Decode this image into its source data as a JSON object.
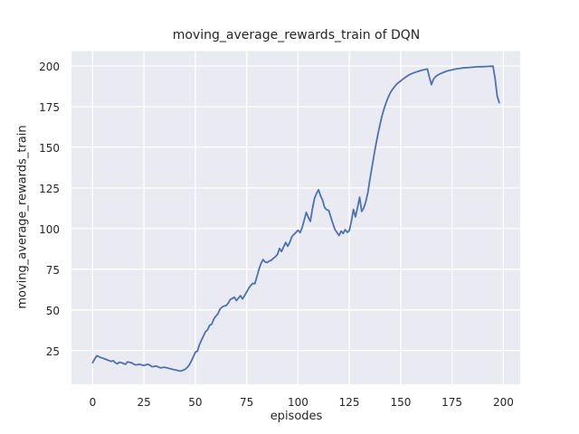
{
  "chart": {
    "title": "moving_average_rewards_train of DQN",
    "xlabel": "episodes",
    "ylabel": "moving_average_rewards_train"
  },
  "chart_data": {
    "type": "line",
    "title": "moving_average_rewards_train of DQN",
    "xlabel": "episodes",
    "ylabel": "moving_average_rewards_train",
    "legend": "none",
    "grid": "on (white gridlines, seaborn darkgrid style)",
    "axes_background_color": "#eaeaf2",
    "line_color": "#4c72b0",
    "text_color": "#262626",
    "xticks": [
      0,
      25,
      50,
      75,
      100,
      125,
      150,
      175,
      200
    ],
    "yticks": [
      25,
      50,
      75,
      100,
      125,
      150,
      175,
      200
    ],
    "xlim": [
      -10.3,
      208.2
    ],
    "ylim": [
      4.2,
      209.2
    ],
    "x": [
      0,
      1,
      2,
      3,
      4,
      5,
      6,
      7,
      8,
      9,
      10,
      11,
      12,
      13,
      14,
      15,
      16,
      17,
      18,
      19,
      20,
      21,
      22,
      23,
      24,
      25,
      26,
      27,
      28,
      29,
      30,
      31,
      32,
      33,
      34,
      35,
      36,
      37,
      38,
      39,
      40,
      41,
      42,
      43,
      44,
      45,
      46,
      47,
      48,
      49,
      50,
      51,
      52,
      53,
      54,
      55,
      56,
      57,
      58,
      59,
      60,
      61,
      62,
      63,
      64,
      65,
      66,
      67,
      68,
      69,
      70,
      71,
      72,
      73,
      74,
      75,
      76,
      77,
      78,
      79,
      80,
      81,
      82,
      83,
      84,
      85,
      86,
      87,
      88,
      89,
      90,
      91,
      92,
      93,
      94,
      95,
      96,
      97,
      98,
      99,
      100,
      101,
      102,
      103,
      104,
      105,
      106,
      107,
      108,
      109,
      110,
      111,
      112,
      113,
      114,
      115,
      116,
      117,
      118,
      119,
      120,
      121,
      122,
      123,
      124,
      125,
      126,
      127,
      128,
      129,
      130,
      131,
      132,
      133,
      134,
      135,
      136,
      137,
      138,
      139,
      140,
      141,
      142,
      143,
      144,
      145,
      146,
      147,
      148,
      149,
      150,
      151,
      152,
      153,
      154,
      155,
      156,
      157,
      158,
      159,
      160,
      161,
      162,
      163,
      164,
      165,
      166,
      167,
      168,
      169,
      170,
      171,
      172,
      173,
      174,
      175,
      176,
      177,
      178,
      179,
      180,
      181,
      182,
      183,
      184,
      185,
      186,
      187,
      188,
      189,
      190,
      191,
      192,
      193,
      194,
      195,
      196,
      197,
      198
    ],
    "values": [
      17.5,
      19.8,
      21.7,
      21.2,
      20.6,
      20.2,
      19.8,
      19.3,
      18.8,
      18.3,
      18.7,
      17.5,
      16.8,
      17.8,
      17.5,
      17.0,
      16.5,
      18.0,
      17.7,
      17.4,
      16.6,
      16.1,
      16.3,
      16.5,
      16.0,
      15.7,
      16.2,
      16.5,
      15.8,
      15.0,
      15.2,
      15.4,
      14.9,
      14.3,
      14.5,
      14.7,
      14.4,
      14.0,
      13.7,
      13.4,
      13.1,
      12.8,
      12.5,
      12.4,
      12.8,
      13.3,
      14.5,
      16.0,
      18.3,
      21.0,
      23.9,
      24.6,
      28.5,
      31.3,
      34.0,
      36.5,
      37.8,
      40.6,
      41.1,
      44.3,
      46.1,
      47.6,
      50.4,
      51.7,
      52.3,
      52.6,
      54.1,
      56.3,
      57.0,
      57.8,
      55.7,
      57.2,
      58.7,
      56.7,
      58.8,
      61.0,
      63.2,
      65.0,
      66.3,
      66.0,
      70.5,
      75.0,
      78.5,
      80.9,
      79.4,
      79.1,
      80.0,
      80.5,
      81.7,
      82.7,
      84.1,
      87.8,
      85.9,
      88.7,
      91.5,
      89.1,
      91.5,
      95.0,
      96.4,
      97.6,
      99.0,
      97.5,
      100.5,
      105.0,
      110.0,
      107.0,
      104.4,
      112.0,
      118.3,
      121.5,
      123.9,
      120.0,
      117.4,
      112.8,
      111.5,
      111.2,
      107.0,
      103.0,
      99.5,
      97.5,
      95.7,
      98.5,
      97.0,
      99.4,
      97.6,
      98.7,
      104.5,
      111.8,
      107.2,
      113.0,
      119.3,
      110.5,
      112.5,
      116.5,
      122.0,
      130.0,
      137.5,
      145.0,
      152.0,
      158.5,
      164.5,
      169.8,
      174.0,
      177.8,
      181.0,
      183.6,
      185.6,
      187.3,
      188.8,
      189.9,
      190.8,
      191.9,
      192.8,
      193.7,
      194.5,
      195.1,
      195.7,
      196.1,
      196.5,
      196.9,
      197.3,
      197.6,
      197.9,
      198.2,
      193.0,
      188.5,
      192.0,
      193.5,
      194.4,
      195.1,
      195.7,
      196.2,
      196.7,
      197.1,
      197.4,
      197.7,
      198.0,
      198.2,
      198.4,
      198.6,
      198.8,
      198.9,
      199.0,
      199.1,
      199.2,
      199.3,
      199.4,
      199.5,
      199.55,
      199.6,
      199.65,
      199.7,
      199.75,
      199.8,
      199.85,
      199.9,
      192.0,
      181.5,
      177.5
    ]
  }
}
